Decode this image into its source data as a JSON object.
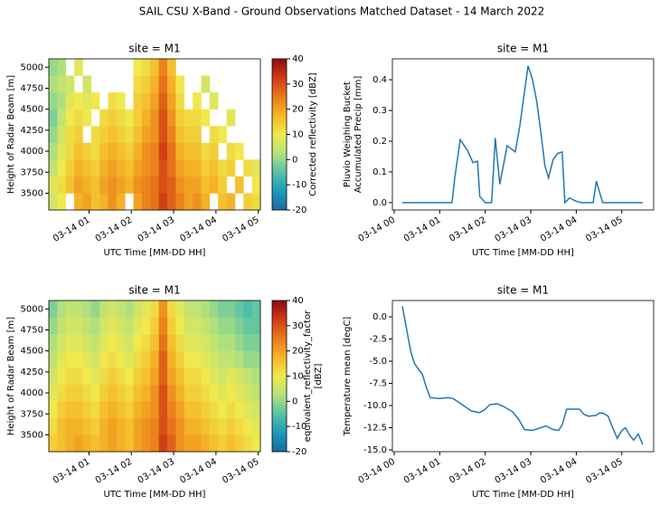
{
  "title": "SAIL CSU X-Band - Ground Observations Matched Dataset - 14 March 2022",
  "chart_data": [
    {
      "type": "heatmap",
      "title": "site = M1",
      "x_label": "UTC Time [MM-DD HH]",
      "y_label": "Height of Radar Beam [m]",
      "colorbar_label": [
        "Corrected reflectivity [dBZ]"
      ],
      "xbins": [
        0.05,
        0.25,
        0.45,
        0.65,
        0.85,
        1.05,
        1.25,
        1.45,
        1.65,
        1.85,
        2.05,
        2.25,
        2.45,
        2.65,
        2.85,
        3.05,
        3.25,
        3.45,
        3.65,
        3.85,
        4.05,
        4.25,
        4.45,
        4.65,
        4.85,
        5.05
      ],
      "ybins": [
        3300,
        3500,
        3700,
        3900,
        4100,
        4300,
        4500,
        4700,
        4900,
        5100
      ],
      "z": [
        [
          6,
          10,
          null,
          18,
          20,
          16,
          18,
          22,
          18,
          null,
          20,
          24,
          26,
          32,
          28,
          24,
          20,
          22,
          18,
          null,
          16,
          18,
          null,
          14,
          12
        ],
        [
          8,
          12,
          16,
          20,
          18,
          16,
          20,
          22,
          20,
          18,
          22,
          24,
          26,
          30,
          28,
          22,
          20,
          20,
          16,
          18,
          14,
          null,
          16,
          null,
          10
        ],
        [
          4,
          10,
          14,
          18,
          16,
          14,
          18,
          20,
          18,
          16,
          20,
          22,
          24,
          30,
          26,
          20,
          18,
          18,
          14,
          16,
          12,
          14,
          null,
          12,
          8
        ],
        [
          2,
          8,
          12,
          16,
          14,
          12,
          16,
          18,
          16,
          14,
          18,
          22,
          24,
          32,
          26,
          18,
          16,
          16,
          12,
          14,
          null,
          12,
          10,
          null,
          null
        ],
        [
          0,
          6,
          12,
          14,
          null,
          12,
          14,
          16,
          14,
          12,
          16,
          20,
          22,
          30,
          24,
          16,
          14,
          14,
          null,
          12,
          10,
          null,
          null,
          null,
          null
        ],
        [
          -2,
          4,
          10,
          12,
          10,
          null,
          12,
          14,
          12,
          10,
          14,
          18,
          22,
          30,
          22,
          14,
          12,
          12,
          10,
          null,
          null,
          8,
          null,
          null,
          null
        ],
        [
          0,
          2,
          8,
          10,
          8,
          10,
          null,
          12,
          10,
          null,
          14,
          16,
          20,
          28,
          20,
          12,
          null,
          10,
          null,
          8,
          null,
          null,
          null,
          null,
          null
        ],
        [
          2,
          4,
          6,
          null,
          6,
          null,
          null,
          null,
          null,
          null,
          12,
          14,
          18,
          26,
          18,
          10,
          null,
          null,
          6,
          null,
          null,
          null,
          null,
          null,
          null
        ],
        [
          0,
          2,
          null,
          8,
          null,
          null,
          null,
          null,
          null,
          null,
          10,
          12,
          16,
          24,
          16,
          null,
          null,
          null,
          null,
          null,
          null,
          null,
          null,
          null,
          null
        ]
      ],
      "xlim": [
        0.05,
        5.05
      ],
      "ylim": [
        3300,
        5100
      ],
      "xticks": [
        {
          "value": 1,
          "label": "03-14 01"
        },
        {
          "value": 2,
          "label": "03-14 02"
        },
        {
          "value": 3,
          "label": "03-14 03"
        },
        {
          "value": 4,
          "label": "03-14 04"
        },
        {
          "value": 5,
          "label": "03-14 05"
        }
      ],
      "yticks": [
        3500,
        3750,
        4000,
        4250,
        4500,
        4750,
        5000
      ],
      "clim": [
        -20,
        40
      ],
      "cticks": [
        -20,
        -10,
        0,
        10,
        20,
        30,
        40
      ],
      "colors": [
        "#1b6aa5",
        "#1d9ab8",
        "#57c3a6",
        "#b6e27b",
        "#f0e94e",
        "#f5b627",
        "#ea7a19",
        "#cf3b17",
        "#8e0a0f"
      ]
    },
    {
      "type": "line",
      "title": "site = M1",
      "x_label": "UTC Time [MM-DD HH]",
      "y_label": [
        "Pluvio Weighing Bucket",
        "Accumulated Precip [mm]"
      ],
      "color": "#1f77b4",
      "x": [
        0.18,
        1.27,
        1.33,
        1.45,
        1.61,
        1.73,
        1.83,
        1.88,
        2.0,
        2.14,
        2.22,
        2.32,
        2.48,
        2.66,
        2.76,
        2.94,
        3.04,
        3.13,
        3.23,
        3.31,
        3.39,
        3.49,
        3.59,
        3.69,
        3.75,
        3.85,
        3.99,
        4.11,
        4.37,
        4.44,
        4.58,
        5.46
      ],
      "values": [
        0,
        0,
        0.08,
        0.205,
        0.17,
        0.13,
        0.135,
        0.02,
        0,
        0,
        0.21,
        0.06,
        0.185,
        0.165,
        0.25,
        0.445,
        0.4,
        0.33,
        0.22,
        0.12,
        0.08,
        0.14,
        0.16,
        0.165,
        0,
        0.015,
        0.005,
        0,
        0,
        0.07,
        0,
        0
      ],
      "xlim": [
        -0.04,
        5.7
      ],
      "ylim": [
        -0.024,
        0.468
      ],
      "xticks": [
        {
          "value": 0,
          "label": "03-14 00"
        },
        {
          "value": 1,
          "label": "03-14 01"
        },
        {
          "value": 2,
          "label": "03-14 02"
        },
        {
          "value": 3,
          "label": "03-14 03"
        },
        {
          "value": 4,
          "label": "03-14 04"
        },
        {
          "value": 5,
          "label": "03-14 05"
        }
      ],
      "yticks": [
        {
          "value": 0,
          "label": "0.0"
        },
        0.1,
        0.2,
        0.3,
        0.4
      ]
    },
    {
      "type": "heatmap",
      "title": "site = M1",
      "x_label": "UTC Time [MM-DD HH]",
      "y_label": "Height of Radar Beam [m]",
      "colorbar_label": [
        "equivalent_reflectivity_factor",
        "[dBZ]"
      ],
      "xbins": [
        0.05,
        0.25,
        0.45,
        0.65,
        0.85,
        1.05,
        1.25,
        1.45,
        1.65,
        1.85,
        2.05,
        2.25,
        2.45,
        2.65,
        2.85,
        3.05,
        3.25,
        3.45,
        3.65,
        3.85,
        4.05,
        4.25,
        4.45,
        4.65,
        4.85,
        5.05
      ],
      "ybins": [
        3300,
        3500,
        3700,
        3900,
        4100,
        4300,
        4500,
        4700,
        4900,
        5100
      ],
      "z": [
        [
          14,
          16,
          18,
          20,
          18,
          16,
          18,
          20,
          18,
          16,
          20,
          22,
          24,
          32,
          28,
          22,
          20,
          20,
          18,
          16,
          14,
          16,
          14,
          12,
          10
        ],
        [
          12,
          16,
          18,
          18,
          16,
          14,
          18,
          20,
          18,
          16,
          20,
          22,
          24,
          30,
          26,
          22,
          18,
          18,
          16,
          14,
          12,
          14,
          12,
          10,
          8
        ],
        [
          10,
          14,
          16,
          16,
          14,
          12,
          16,
          18,
          16,
          14,
          18,
          20,
          22,
          30,
          24,
          20,
          16,
          16,
          14,
          12,
          10,
          12,
          10,
          8,
          6
        ],
        [
          8,
          12,
          14,
          14,
          12,
          10,
          14,
          16,
          14,
          12,
          16,
          18,
          22,
          30,
          22,
          18,
          14,
          14,
          12,
          10,
          8,
          10,
          8,
          6,
          4
        ],
        [
          6,
          10,
          12,
          12,
          10,
          8,
          12,
          14,
          12,
          10,
          14,
          16,
          20,
          28,
          20,
          16,
          12,
          12,
          10,
          8,
          6,
          8,
          6,
          4,
          2
        ],
        [
          4,
          8,
          10,
          10,
          8,
          6,
          10,
          12,
          10,
          8,
          12,
          14,
          18,
          28,
          18,
          14,
          10,
          10,
          8,
          6,
          4,
          4,
          2,
          0,
          0
        ],
        [
          2,
          6,
          8,
          8,
          6,
          4,
          8,
          10,
          8,
          6,
          10,
          12,
          16,
          26,
          16,
          12,
          8,
          8,
          6,
          4,
          2,
          2,
          0,
          -2,
          -2
        ],
        [
          0,
          4,
          6,
          6,
          4,
          2,
          6,
          8,
          6,
          4,
          8,
          10,
          14,
          24,
          14,
          10,
          6,
          6,
          4,
          2,
          0,
          0,
          -2,
          -4,
          -4
        ],
        [
          -2,
          2,
          4,
          4,
          2,
          0,
          4,
          6,
          4,
          2,
          6,
          8,
          12,
          22,
          12,
          8,
          4,
          4,
          2,
          0,
          -2,
          -2,
          -4,
          -6,
          -4
        ]
      ],
      "xlim": [
        0.05,
        5.05
      ],
      "ylim": [
        3300,
        5100
      ],
      "xticks": [
        {
          "value": 1,
          "label": "03-14 01"
        },
        {
          "value": 2,
          "label": "03-14 02"
        },
        {
          "value": 3,
          "label": "03-14 03"
        },
        {
          "value": 4,
          "label": "03-14 04"
        },
        {
          "value": 5,
          "label": "03-14 05"
        }
      ],
      "yticks": [
        3500,
        3750,
        4000,
        4250,
        4500,
        4750,
        5000
      ],
      "clim": [
        -20,
        40
      ],
      "cticks": [
        -20,
        -10,
        0,
        10,
        20,
        30,
        40
      ],
      "colors": [
        "#1b6aa5",
        "#1d9ab8",
        "#57c3a6",
        "#b6e27b",
        "#f0e94e",
        "#f5b627",
        "#ea7a19",
        "#cf3b17",
        "#8e0a0f"
      ]
    },
    {
      "type": "line",
      "title": "site = M1",
      "x_label": "UTC Time [MM-DD HH]",
      "y_label": [
        "Temperature mean [degC]"
      ],
      "color": "#1f77b4",
      "x": [
        0.18,
        0.28,
        0.36,
        0.44,
        0.52,
        0.62,
        0.71,
        0.79,
        0.99,
        1.19,
        1.29,
        1.41,
        1.55,
        1.69,
        1.87,
        1.98,
        2.1,
        2.26,
        2.4,
        2.6,
        2.74,
        2.86,
        3.04,
        3.21,
        3.33,
        3.49,
        3.61,
        3.69,
        3.79,
        4.07,
        4.17,
        4.27,
        4.44,
        4.52,
        4.6,
        4.7,
        4.76,
        4.9,
        5.0,
        5.08,
        5.18,
        5.26,
        5.36,
        5.46
      ],
      "values": [
        1.2,
        -1.6,
        -3.8,
        -5.2,
        -5.8,
        -6.5,
        -8.0,
        -9.1,
        -9.2,
        -9.1,
        -9.2,
        -9.6,
        -10.1,
        -10.6,
        -10.8,
        -10.5,
        -9.9,
        -9.8,
        -10.1,
        -10.7,
        -11.6,
        -12.7,
        -12.8,
        -12.5,
        -12.3,
        -12.7,
        -12.8,
        -12.2,
        -10.4,
        -10.4,
        -11.0,
        -11.2,
        -11.1,
        -10.8,
        -10.9,
        -11.2,
        -12.0,
        -13.7,
        -12.8,
        -12.5,
        -13.4,
        -13.9,
        -13.2,
        -14.4
      ],
      "xlim": [
        -0.04,
        5.7
      ],
      "ylim": [
        -15.2,
        1.84
      ],
      "xticks": [
        {
          "value": 0,
          "label": "03-14 00"
        },
        {
          "value": 1,
          "label": "03-14 01"
        },
        {
          "value": 2,
          "label": "03-14 02"
        },
        {
          "value": 3,
          "label": "03-14 03"
        },
        {
          "value": 4,
          "label": "03-14 04"
        },
        {
          "value": 5,
          "label": "03-14 05"
        }
      ],
      "yticks": [
        {
          "value": -15,
          "label": "-15.0"
        },
        {
          "value": -12.5,
          "label": "-12.5"
        },
        {
          "value": -10,
          "label": "-10.0"
        },
        {
          "value": -7.5,
          "label": "-7.5"
        },
        {
          "value": -5,
          "label": "-5.0"
        },
        -2.5,
        {
          "value": 0,
          "label": "0.0"
        }
      ]
    }
  ]
}
